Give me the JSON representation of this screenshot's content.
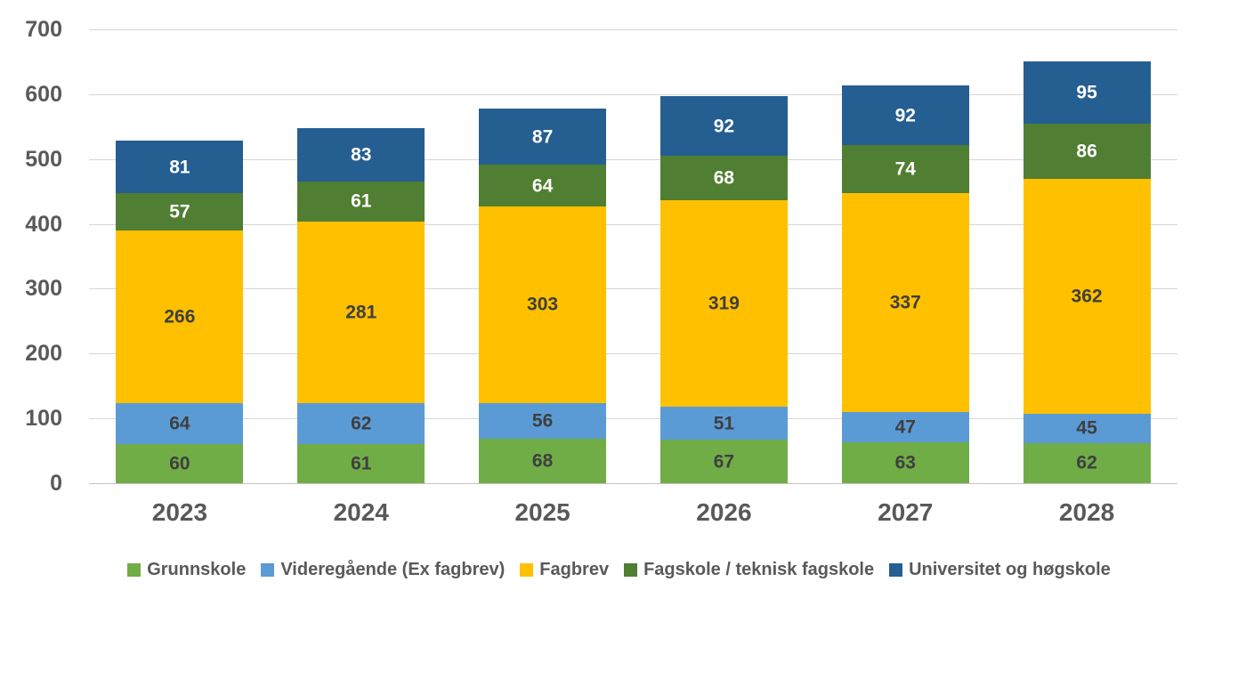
{
  "chart_data": {
    "type": "bar",
    "stacked": true,
    "title": "",
    "xlabel": "",
    "ylabel": "",
    "categories": [
      "2023",
      "2024",
      "2025",
      "2026",
      "2027",
      "2028"
    ],
    "series": [
      {
        "name": "Grunnskole",
        "color": "#70AD47",
        "label_color": "#3F3F3F",
        "values": [
          60,
          61,
          68,
          67,
          63,
          62
        ]
      },
      {
        "name": "Videregående (Ex fagbrev)",
        "color": "#5B9BD5",
        "label_color": "#3F3F3F",
        "values": [
          64,
          62,
          56,
          51,
          47,
          45
        ]
      },
      {
        "name": "Fagbrev",
        "color": "#FFC000",
        "label_color": "#3F3F3F",
        "values": [
          266,
          281,
          303,
          319,
          337,
          362
        ]
      },
      {
        "name": "Fagskole / teknisk fagskole",
        "color": "#507E32",
        "label_color": "#FFFFFF",
        "values": [
          57,
          61,
          64,
          68,
          74,
          86
        ]
      },
      {
        "name": "Universitet og høgskole",
        "color": "#255E91",
        "label_color": "#FFFFFF",
        "values": [
          81,
          83,
          87,
          92,
          92,
          95
        ]
      }
    ],
    "totals": [
      528,
      548,
      578,
      597,
      613,
      650
    ],
    "ylim": [
      0,
      700
    ],
    "yticks": [
      0,
      100,
      200,
      300,
      400,
      500,
      600,
      700
    ],
    "grid": "horizontal",
    "data_labels": true,
    "legend_position": "bottom",
    "axis_text_color": "#595959",
    "gridline_color": "#D6D6D6",
    "background_color": "#FFFFFF"
  }
}
